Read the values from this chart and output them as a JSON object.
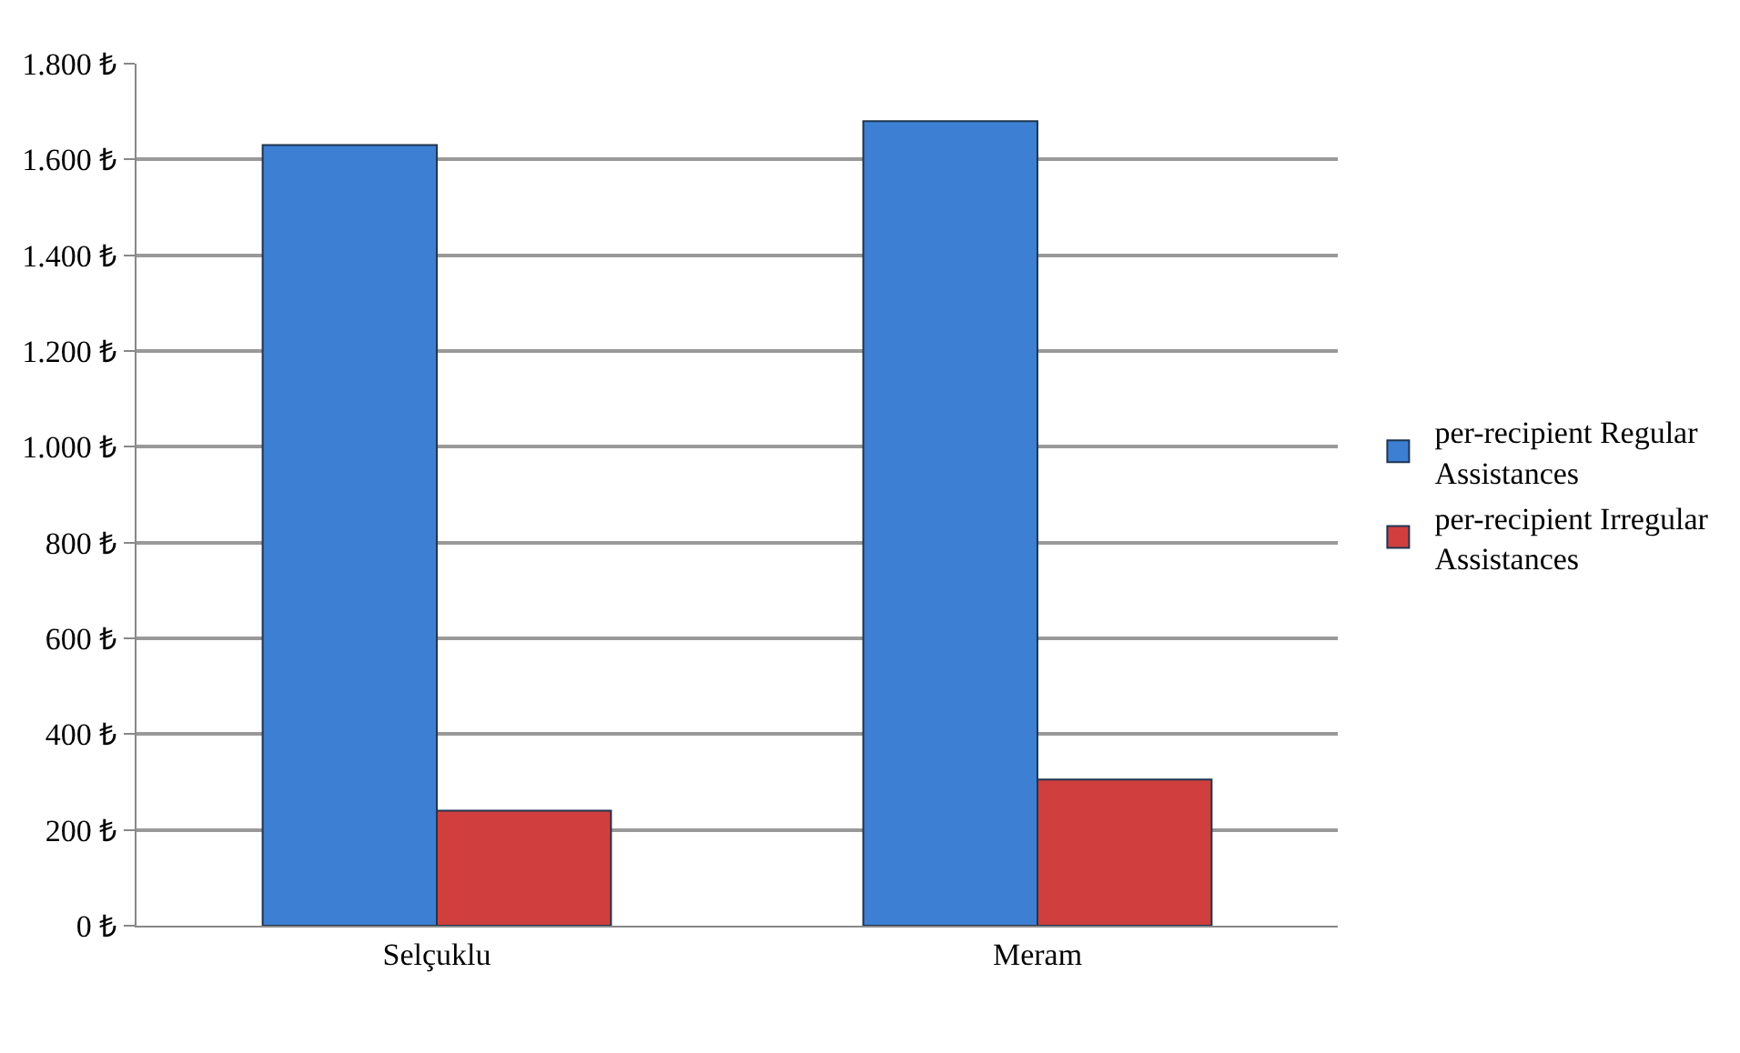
{
  "chart_data": {
    "type": "bar",
    "categories": [
      "Selçuklu",
      "Meram"
    ],
    "series": [
      {
        "name": "per-recipient Regular Assistances",
        "color": "#3d7fd2",
        "values": [
          1630,
          1680
        ]
      },
      {
        "name": "per-recipient Irregular Assistances",
        "color": "#d03f3d",
        "values": [
          240,
          305
        ]
      }
    ],
    "ylim": [
      0,
      1800
    ],
    "yticks": [
      {
        "value": 0,
        "label": "0 ₺"
      },
      {
        "value": 200,
        "label": "200 ₺"
      },
      {
        "value": 400,
        "label": "400 ₺"
      },
      {
        "value": 600,
        "label": "600 ₺"
      },
      {
        "value": 800,
        "label": "800 ₺"
      },
      {
        "value": 1000,
        "label": "1.000 ₺"
      },
      {
        "value": 1200,
        "label": "1.200 ₺"
      },
      {
        "value": 1400,
        "label": "1.400 ₺"
      },
      {
        "value": 1600,
        "label": "1.600 ₺"
      },
      {
        "value": 1800,
        "label": "1.800 ₺"
      }
    ],
    "grid": "y",
    "legend": "right"
  }
}
